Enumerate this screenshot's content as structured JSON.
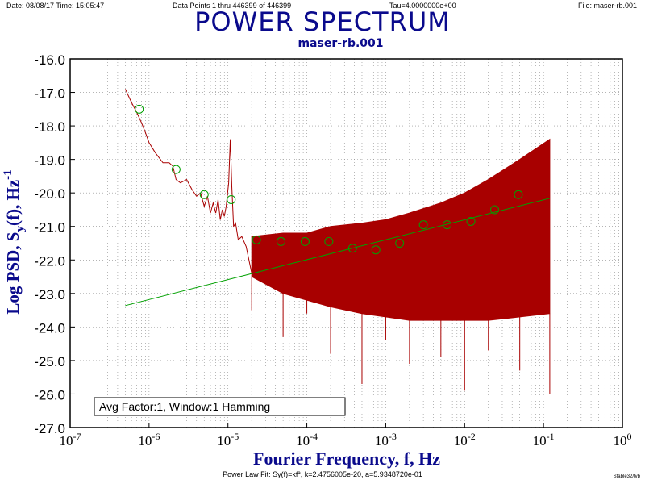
{
  "header": {
    "date": "Date: 08/08/17  Time: 15:05:47",
    "points": "Data Points 1 thru 446399 of 446399",
    "tau": "Tau=4.0000000e+00",
    "file": "File: maser-rb.001"
  },
  "footer": {
    "fit": "Power Law Fit: Sy(f)=kfª, k=2.4756005e-20, a=5.9348720e-01",
    "stamp": "Stable32/tvb"
  },
  "chart_data": {
    "type": "line",
    "title": "POWER SPECTRUM",
    "subtitle": "maser-rb.001",
    "xlabel": "Fourier Frequency, f, Hz",
    "ylabel": "Log PSD, S",
    "ylabel_sub": "y",
    "ylabel_tail": "(f), Hz",
    "ylabel_sup": "-1",
    "xscale": "log",
    "xlim": [
      1e-07,
      1
    ],
    "ylim": [
      -27.0,
      -16.0
    ],
    "x_ticks": [
      {
        "base": "10",
        "exp": "-7"
      },
      {
        "base": "10",
        "exp": "-6"
      },
      {
        "base": "10",
        "exp": "-5"
      },
      {
        "base": "10",
        "exp": "-4"
      },
      {
        "base": "10",
        "exp": "-3"
      },
      {
        "base": "10",
        "exp": "-2"
      },
      {
        "base": "10",
        "exp": "-1"
      },
      {
        "base": "10",
        "exp": "0"
      }
    ],
    "y_ticks": [
      "-16.0",
      "-17.0",
      "-18.0",
      "-19.0",
      "-20.0",
      "-21.0",
      "-22.0",
      "-23.0",
      "-24.0",
      "-25.0",
      "-26.0",
      "-27.0"
    ],
    "grid": true,
    "annotation": "Avg Factor:1, Window:1 Hamming",
    "colors": {
      "spectrum": "#a80000",
      "fit": "#00a000",
      "points": "#00a000",
      "axis": "#000000",
      "grid": "#888888",
      "label": "#0a0a8c"
    },
    "series": [
      {
        "name": "",
        "style": "spectrum",
        "x": [
          5e-07,
          6e-07,
          7e-07,
          8e-07,
          9e-07,
          1e-06,
          1.2e-06,
          1.5e-06,
          1.8e-06,
          2e-06,
          2.2e-06,
          2.5e-06,
          3e-06,
          3.5e-06,
          4e-06,
          4.5e-06,
          5e-06,
          5.5e-06,
          6e-06,
          6.5e-06,
          7e-06,
          7.5e-06,
          8e-06,
          8.5e-06,
          9e-06,
          9.5e-06,
          1.02e-05,
          1.07e-05,
          1.12e-05,
          1.18e-05,
          1.25e-05,
          1.35e-05,
          1.5e-05,
          1.7e-05,
          2e-05
        ],
        "y": [
          -16.9,
          -17.3,
          -17.6,
          -17.9,
          -18.2,
          -18.5,
          -18.8,
          -19.1,
          -19.1,
          -19.2,
          -19.6,
          -19.7,
          -19.6,
          -19.9,
          -20.1,
          -20.0,
          -20.4,
          -20.1,
          -20.6,
          -20.3,
          -20.6,
          -20.2,
          -20.8,
          -20.5,
          -20.7,
          -20.4,
          -19.7,
          -18.4,
          -19.8,
          -21.0,
          -20.9,
          -21.4,
          -21.3,
          -21.6,
          -22.4
        ]
      },
      {
        "name": "",
        "style": "fit",
        "x": [
          5e-07,
          0.12
        ],
        "y": [
          -23.36,
          -20.16
        ]
      },
      {
        "name": "",
        "style": "markers",
        "x": [
          7.5e-07,
          2.2e-06,
          5e-06,
          1.1e-05,
          2.3e-05,
          4.7e-05,
          9.5e-05,
          0.00019,
          0.00038,
          0.00075,
          0.0015,
          0.003,
          0.006,
          0.012,
          0.024,
          0.048
        ],
        "y": [
          -17.5,
          -19.3,
          -20.05,
          -20.2,
          -21.4,
          -21.45,
          -21.45,
          -21.45,
          -21.65,
          -21.7,
          -21.5,
          -20.95,
          -20.95,
          -20.85,
          -20.5,
          -20.05
        ]
      }
    ],
    "noise_band": {
      "x": [
        2e-05,
        5e-05,
        0.0001,
        0.0002,
        0.0005,
        0.001,
        0.002,
        0.005,
        0.01,
        0.02,
        0.05,
        0.12
      ],
      "upper": [
        -21.3,
        -21.2,
        -21.2,
        -21.0,
        -20.9,
        -20.8,
        -20.6,
        -20.3,
        -20.0,
        -19.6,
        -19.0,
        -18.4
      ],
      "lower": [
        -22.5,
        -23.0,
        -23.2,
        -23.4,
        -23.6,
        -23.7,
        -23.8,
        -23.8,
        -23.8,
        -23.8,
        -23.7,
        -23.6
      ],
      "spikes": [
        -23.5,
        -24.3,
        -23.6,
        -24.8,
        -25.7,
        -24.4,
        -25.1,
        -24.9,
        -25.9,
        -24.7,
        -25.3,
        -26.0
      ]
    }
  }
}
